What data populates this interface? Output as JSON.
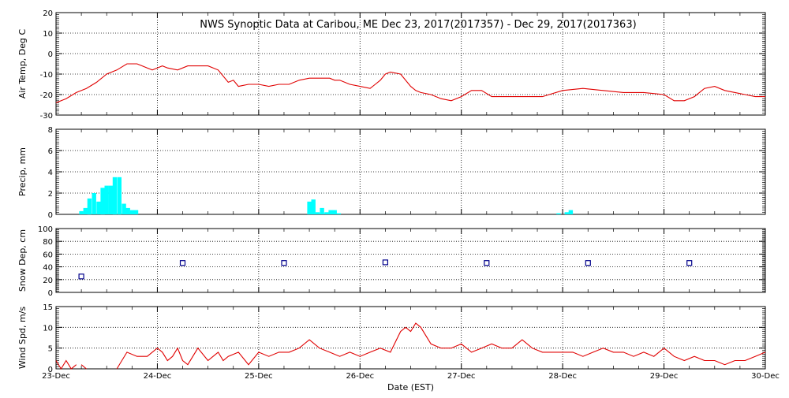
{
  "colors": {
    "temp_line": "#e00000",
    "precip_bar": "#00ffff",
    "snow_marker": "#00008b",
    "wind_line": "#e00000",
    "axis": "#000000"
  },
  "chart_data": [
    {
      "id": "air_temp",
      "type": "line",
      "title": "NWS Synoptic Data at Caribou, ME    Dec 23, 2017(2017357) - Dec 29, 2017(2017363)",
      "xlabel": "",
      "ylabel": "Air Temp, Deg C",
      "xlim": [
        0,
        7
      ],
      "ylim": [
        -30,
        20
      ],
      "yticks": [
        "-30",
        "-20",
        "-10",
        "0",
        "10",
        "20"
      ],
      "ytick_values": [
        -30,
        -20,
        -10,
        0,
        10,
        20
      ],
      "x": [
        0,
        0.1,
        0.2,
        0.3,
        0.4,
        0.5,
        0.6,
        0.7,
        0.8,
        0.85,
        0.9,
        0.95,
        1.0,
        1.05,
        1.1,
        1.2,
        1.3,
        1.4,
        1.5,
        1.6,
        1.7,
        1.75,
        1.8,
        1.9,
        2.0,
        2.1,
        2.2,
        2.3,
        2.4,
        2.5,
        2.6,
        2.7,
        2.75,
        2.8,
        2.9,
        3.0,
        3.1,
        3.15,
        3.2,
        3.25,
        3.3,
        3.4,
        3.5,
        3.55,
        3.6,
        3.7,
        3.8,
        3.9,
        4.0,
        4.1,
        4.2,
        4.3,
        4.4,
        4.5,
        4.6,
        4.7,
        4.8,
        5.0,
        5.2,
        5.4,
        5.6,
        5.8,
        6.0,
        6.1,
        6.2,
        6.3,
        6.4,
        6.5,
        6.6,
        6.7,
        6.8,
        6.9,
        7.0
      ],
      "y": [
        -24,
        -22,
        -19,
        -17,
        -14,
        -10,
        -8,
        -5,
        -5,
        -6,
        -7,
        -8,
        -7,
        -6,
        -7,
        -8,
        -6,
        -6,
        -6,
        -8,
        -14,
        -13,
        -16,
        -15,
        -15,
        -16,
        -15,
        -15,
        -13,
        -12,
        -12,
        -12,
        -13,
        -13,
        -15,
        -16,
        -17,
        -15,
        -13,
        -10,
        -9,
        -10,
        -16,
        -18,
        -19,
        -20,
        -22,
        -23,
        -21,
        -18,
        -18,
        -21,
        -21,
        -21,
        -21,
        -21,
        -21,
        -18,
        -17,
        -18,
        -19,
        -19,
        -20,
        -23,
        -23,
        -21,
        -17,
        -16,
        -18,
        -19,
        -20,
        -21,
        -21
      ]
    },
    {
      "id": "precip",
      "type": "bar",
      "xlabel": "",
      "ylabel": "Precip, mm",
      "xlim": [
        0,
        7
      ],
      "ylim": [
        0,
        8
      ],
      "yticks": [
        "0",
        "2",
        "4",
        "6",
        "8"
      ],
      "ytick_values": [
        0,
        2,
        4,
        6,
        8
      ],
      "bar_width": 0.0417,
      "x": [
        0.25,
        0.29,
        0.33,
        0.375,
        0.42,
        0.46,
        0.5,
        0.54,
        0.58,
        0.625,
        0.67,
        0.71,
        0.75,
        0.79,
        0.83,
        2.5,
        2.54,
        2.58,
        2.625,
        2.67,
        2.71,
        2.75,
        2.79,
        4.96,
        5.0,
        5.04,
        5.08
      ],
      "values": [
        0.3,
        0.6,
        1.5,
        2.0,
        1.2,
        2.5,
        2.7,
        2.7,
        3.5,
        3.5,
        1.0,
        0.6,
        0.4,
        0.4,
        0.0,
        1.2,
        1.4,
        0.2,
        0.6,
        0.2,
        0.4,
        0.4,
        0.1,
        0.1,
        0.0,
        0.2,
        0.4
      ]
    },
    {
      "id": "snow_depth",
      "type": "scatter",
      "xlabel": "",
      "ylabel": "Snow Dep, cm",
      "xlim": [
        0,
        7
      ],
      "ylim": [
        0,
        100
      ],
      "yticks": [
        "0",
        "20",
        "40",
        "60",
        "80",
        "100"
      ],
      "ytick_values": [
        0,
        20,
        40,
        60,
        80,
        100
      ],
      "x": [
        0.25,
        1.25,
        2.25,
        3.25,
        4.25,
        5.25,
        6.25
      ],
      "y": [
        25,
        46,
        46,
        47,
        46,
        46,
        46
      ]
    },
    {
      "id": "wind_speed",
      "type": "line",
      "xlabel": "Date (EST)",
      "ylabel": "Wind Spd, m/s",
      "xlim": [
        0,
        7
      ],
      "ylim": [
        0,
        15
      ],
      "yticks": [
        "0",
        "5",
        "10",
        "15"
      ],
      "ytick_values": [
        0,
        5,
        10,
        15
      ],
      "xticks": [
        "23-Dec",
        "24-Dec",
        "25-Dec",
        "26-Dec",
        "27-Dec",
        "28-Dec",
        "29-Dec",
        "30-Dec"
      ],
      "xtick_values": [
        0,
        1,
        2,
        3,
        4,
        5,
        6,
        7
      ],
      "segments": [
        {
          "x": [
            0,
            0.05,
            0.1,
            0.15,
            0.2
          ],
          "y": [
            2,
            0,
            2,
            0,
            1
          ]
        },
        {
          "x": [
            0.25,
            0.3
          ],
          "y": [
            1,
            0
          ]
        },
        {
          "x": [
            0.6,
            0.7,
            0.8,
            0.9,
            0.95,
            1.0,
            1.05,
            1.1,
            1.15,
            1.2,
            1.25,
            1.3,
            1.35,
            1.4,
            1.5,
            1.55,
            1.6,
            1.65,
            1.7,
            1.8,
            1.9,
            2.0,
            2.1,
            2.2,
            2.3,
            2.4,
            2.5,
            2.6,
            2.7,
            2.8,
            2.9,
            3.0,
            3.1,
            3.2,
            3.3,
            3.4,
            3.45,
            3.5,
            3.55,
            3.6,
            3.7,
            3.8,
            3.9,
            4.0,
            4.1,
            4.2,
            4.3,
            4.4,
            4.5,
            4.6,
            4.7,
            4.8,
            4.9,
            5.0,
            5.1,
            5.2,
            5.3,
            5.4,
            5.5,
            5.6,
            5.7,
            5.8,
            5.9,
            6.0,
            6.1,
            6.2,
            6.3,
            6.4,
            6.5,
            6.6,
            6.7,
            6.8,
            6.9,
            7.0
          ],
          "y": [
            0,
            4,
            3,
            3,
            4,
            5,
            4,
            2,
            3,
            5,
            2,
            1,
            3,
            5,
            2,
            3,
            4,
            2,
            3,
            4,
            1,
            4,
            3,
            4,
            4,
            5,
            7,
            5,
            4,
            3,
            4,
            3,
            4,
            5,
            4,
            9,
            10,
            9,
            11,
            10,
            6,
            5,
            5,
            6,
            4,
            5,
            6,
            5,
            5,
            7,
            5,
            4,
            4,
            4,
            4,
            3,
            4,
            5,
            4,
            4,
            3,
            4,
            3,
            5,
            3,
            2,
            3,
            2,
            2,
            1,
            2,
            2,
            3,
            4
          ]
        }
      ]
    }
  ]
}
